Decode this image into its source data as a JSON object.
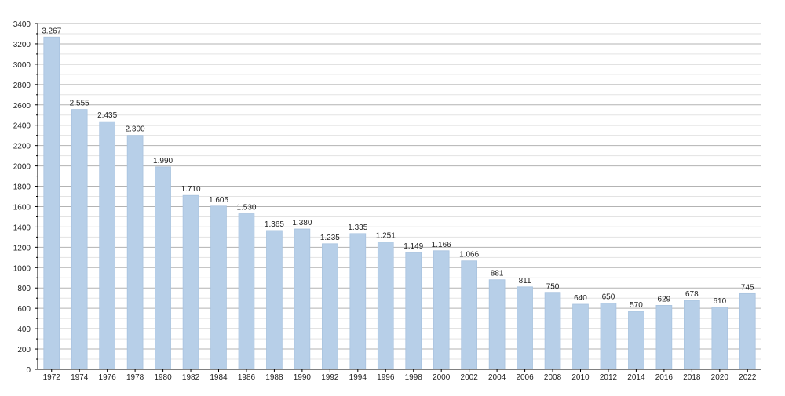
{
  "chart_data": {
    "type": "bar",
    "categories": [
      "1972",
      "1974",
      "1976",
      "1978",
      "1980",
      "1982",
      "1984",
      "1986",
      "1988",
      "1990",
      "1992",
      "1994",
      "1996",
      "1998",
      "2000",
      "2002",
      "2004",
      "2006",
      "2008",
      "2010",
      "2012",
      "2014",
      "2016",
      "2018",
      "2020",
      "2022"
    ],
    "values": [
      3267,
      2555,
      2435,
      2300,
      1990,
      1710,
      1605,
      1530,
      1365,
      1380,
      1235,
      1335,
      1251,
      1149,
      1166,
      1066,
      881,
      811,
      750,
      640,
      650,
      570,
      629,
      678,
      610,
      745
    ],
    "value_labels": [
      "3.267",
      "2.555",
      "2.435",
      "2.300",
      "1.990",
      "1.710",
      "1.605",
      "1.530",
      "1.365",
      "1.380",
      "1.235",
      "1.335",
      "1.251",
      "1.149",
      "1.166",
      "1.066",
      "881",
      "811",
      "750",
      "640",
      "650",
      "570",
      "629",
      "678",
      "610",
      "745"
    ],
    "y_ticks": [
      0,
      200,
      400,
      600,
      800,
      1000,
      1200,
      1400,
      1600,
      1800,
      2000,
      2200,
      2400,
      2600,
      2800,
      3000,
      3200,
      3400
    ],
    "ylim": [
      0,
      3400
    ],
    "title": "",
    "xlabel": "",
    "ylabel": "",
    "grid": true,
    "legend": "none",
    "colors": {
      "bar_fill": "#b7cfe8",
      "bar_stroke": "#a9c3df",
      "grid_major": "#b3b3b3",
      "grid_minor": "#e3e3e3",
      "axis": "#000000",
      "text": "#222222"
    }
  }
}
